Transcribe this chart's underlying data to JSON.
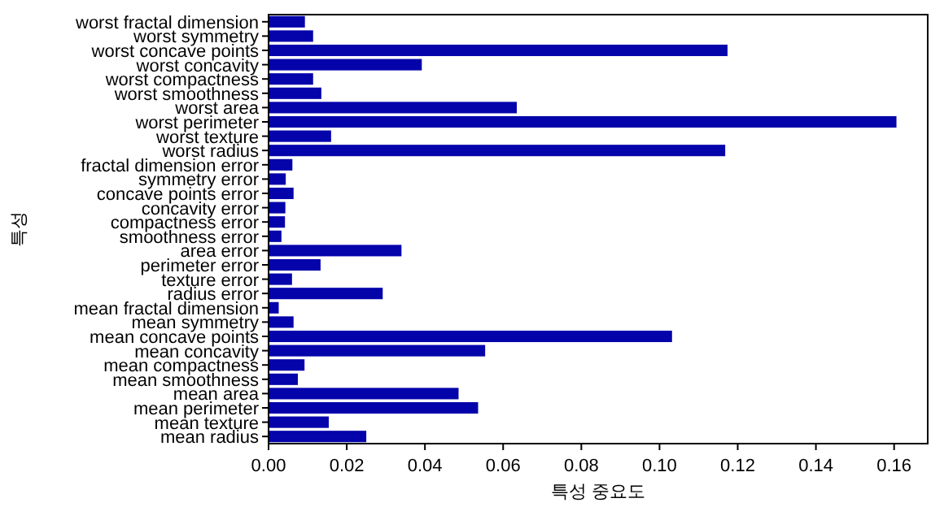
{
  "chart_data": {
    "type": "bar",
    "orientation": "horizontal",
    "xlabel": "특성 중요도",
    "ylabel": "특성",
    "categories": [
      "worst fractal dimension",
      "worst symmetry",
      "worst concave points",
      "worst concavity",
      "worst compactness",
      "worst smoothness",
      "worst area",
      "worst perimeter",
      "worst texture",
      "worst radius",
      "fractal dimension error",
      "symmetry error",
      "concave points error",
      "concavity error",
      "compactness error",
      "smoothness error",
      "area error",
      "perimeter error",
      "texture error",
      "radius error",
      "mean fractal dimension",
      "mean symmetry",
      "mean concave points",
      "mean concavity",
      "mean compactness",
      "mean smoothness",
      "mean area",
      "mean perimeter",
      "mean texture",
      "mean radius"
    ],
    "values": [
      0.0093,
      0.0114,
      0.1174,
      0.0392,
      0.0114,
      0.0135,
      0.0635,
      0.1606,
      0.016,
      0.1168,
      0.0061,
      0.0044,
      0.0064,
      0.0043,
      0.0042,
      0.0033,
      0.034,
      0.0133,
      0.006,
      0.0292,
      0.0026,
      0.0064,
      0.1032,
      0.0554,
      0.0092,
      0.0075,
      0.0486,
      0.0536,
      0.0154,
      0.025
    ],
    "color": "#0504aa",
    "xlim": [
      0,
      0.1686
    ],
    "xticks": [
      {
        "value": 0,
        "label": "0.00"
      },
      {
        "value": 0.02,
        "label": "0.02"
      },
      {
        "value": 0.04,
        "label": "0.04"
      },
      {
        "value": 0.06,
        "label": "0.06"
      },
      {
        "value": 0.08,
        "label": "0.08"
      },
      {
        "value": 0.1,
        "label": "0.10"
      },
      {
        "value": 0.12,
        "label": "0.12"
      },
      {
        "value": 0.14,
        "label": "0.14"
      },
      {
        "value": 0.16,
        "label": "0.16"
      }
    ],
    "grid": false
  }
}
